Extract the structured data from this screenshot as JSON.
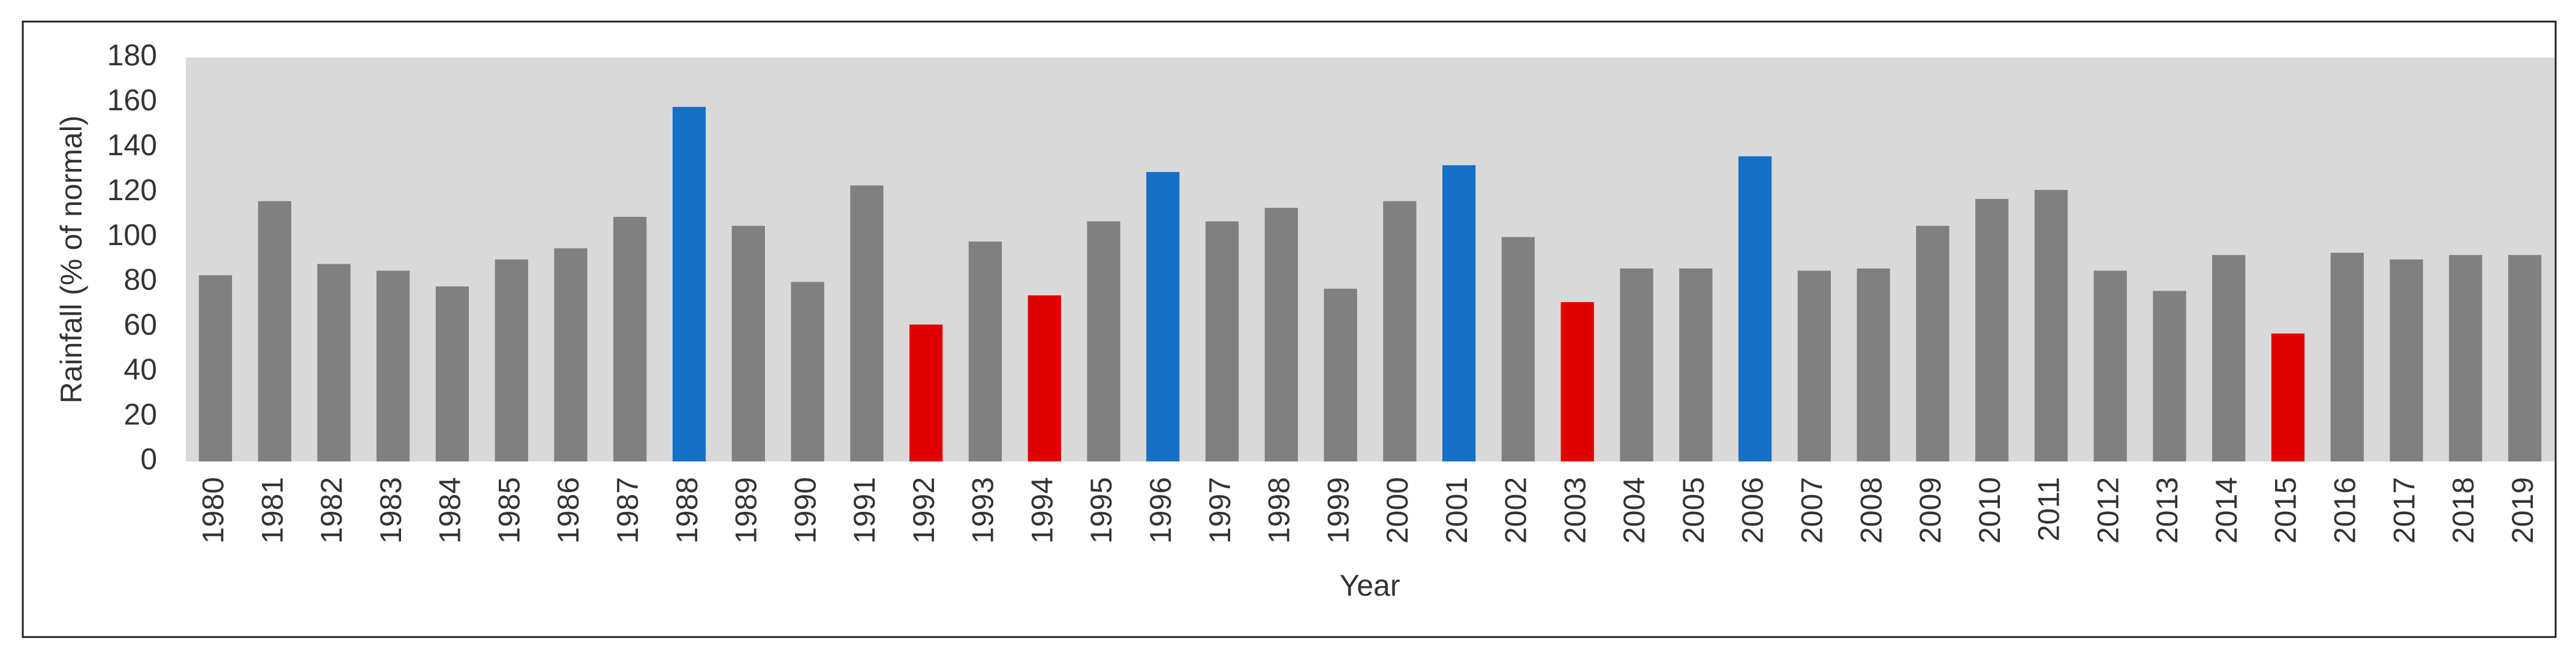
{
  "chart_data": {
    "type": "bar",
    "x_label": "Year",
    "y_label": "Rainfall (% of normal)",
    "categories": [
      "1980",
      "1981",
      "1982",
      "1983",
      "1984",
      "1985",
      "1986",
      "1987",
      "1988",
      "1989",
      "1990",
      "1991",
      "1992",
      "1993",
      "1994",
      "1995",
      "1996",
      "1997",
      "1998",
      "1999",
      "2000",
      "2001",
      "2002",
      "2003",
      "2004",
      "2005",
      "2006",
      "2007",
      "2008",
      "2009",
      "2010",
      "2011",
      "2012",
      "2013",
      "2014",
      "2015",
      "2016",
      "2017",
      "2018",
      "2019"
    ],
    "values": [
      83,
      116,
      88,
      85,
      78,
      90,
      95,
      109,
      158,
      105,
      80,
      123,
      61,
      98,
      74,
      107,
      129,
      107,
      113,
      77,
      116,
      132,
      100,
      71,
      86,
      86,
      136,
      85,
      86,
      105,
      117,
      121,
      85,
      76,
      92,
      57,
      93,
      90,
      92,
      92
    ],
    "colors": [
      "#808080",
      "#808080",
      "#808080",
      "#808080",
      "#808080",
      "#808080",
      "#808080",
      "#808080",
      "#1570c8",
      "#808080",
      "#808080",
      "#808080",
      "#e00000",
      "#808080",
      "#e00000",
      "#808080",
      "#1570c8",
      "#808080",
      "#808080",
      "#808080",
      "#808080",
      "#1570c8",
      "#808080",
      "#e00000",
      "#808080",
      "#808080",
      "#1570c8",
      "#808080",
      "#808080",
      "#808080",
      "#808080",
      "#808080",
      "#808080",
      "#808080",
      "#808080",
      "#e00000",
      "#808080",
      "#808080",
      "#808080",
      "#808080"
    ],
    "ylim": [
      0,
      180
    ],
    "yticks": [
      0,
      20,
      40,
      60,
      80,
      100,
      120,
      140,
      160,
      180
    ],
    "plot_background": "#d9d9d9"
  }
}
